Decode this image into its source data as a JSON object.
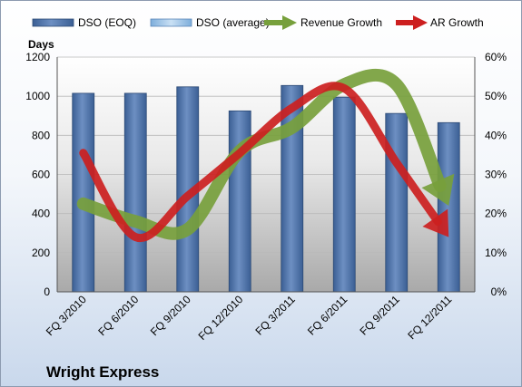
{
  "chart_data": {
    "type": "bar",
    "title": "Wright Express",
    "ylabel": "Days",
    "categories": [
      "FQ 3/2010",
      "FQ 6/2010",
      "FQ 9/2010",
      "FQ 12/2010",
      "FQ 3/2011",
      "FQ 6/2011",
      "FQ 9/2011",
      "FQ 12/2011"
    ],
    "ylim": [
      0,
      1200
    ],
    "y2lim": [
      0,
      0.6
    ],
    "y_ticks": [
      "0",
      "200",
      "400",
      "600",
      "800",
      "1000",
      "1200"
    ],
    "y2_ticks": [
      "0%",
      "10%",
      "20%",
      "30%",
      "40%",
      "50%",
      "60%"
    ],
    "series": [
      {
        "name": "DSO (EOQ)",
        "type": "bar",
        "axis": "left",
        "color": "#4a6fa5",
        "values": [
          1015,
          1015,
          1048,
          925,
          1055,
          995,
          912,
          865
        ]
      },
      {
        "name": "DSO (average)",
        "type": "bar",
        "axis": "left",
        "color": "#9dc3e6",
        "values": [
          null,
          null,
          null,
          null,
          null,
          null,
          null,
          null
        ]
      },
      {
        "name": "Revenue Growth",
        "type": "arrow-line",
        "axis": "right",
        "color": "#77a03c",
        "values": [
          0.225,
          0.18,
          0.16,
          0.36,
          0.42,
          0.53,
          0.53,
          0.22
        ]
      },
      {
        "name": "AR Growth",
        "type": "arrow-line",
        "axis": "right",
        "color": "#cc1f1f",
        "values": [
          0.355,
          0.14,
          0.245,
          0.355,
          0.47,
          0.52,
          0.33,
          0.14
        ]
      }
    ],
    "grid": true,
    "legend": "top"
  }
}
